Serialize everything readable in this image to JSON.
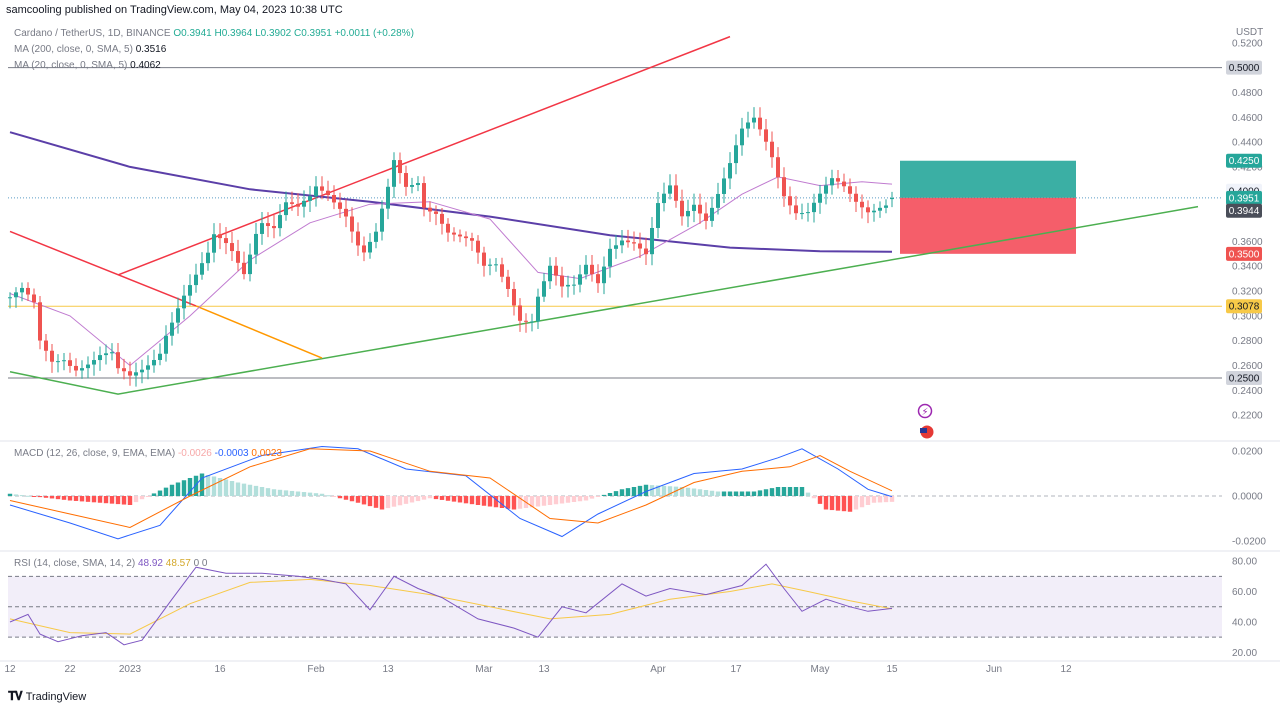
{
  "header": {
    "published": "samcooling published on TradingView.com, May 04, 2023 10:38 UTC"
  },
  "legend": {
    "symbol": "Cardano / TetherUS, 1D, BINANCE",
    "ohlc": "O0.3941  H0.3964  L0.3902  C0.3951  +0.0011 (+0.28%)",
    "ma200_label": "MA (200, close, 0, SMA, 5)",
    "ma200_value": "0.3516",
    "ma20_label": "MA (20, close, 0, SMA, 5)",
    "ma20_value": "0.4062"
  },
  "macd_legend": {
    "label": "MACD (12, 26, close, 9, EMA, EMA)",
    "hist": "-0.0026",
    "macd": "-0.0003",
    "signal": "0.0023"
  },
  "rsi_legend": {
    "label": "RSI (14, close, SMA, 14, 2)",
    "rsi": "48.92",
    "sma": "48.57",
    "extra": "0  0"
  },
  "footer": {
    "brand": "TradingView"
  },
  "colors": {
    "up": "#26a69a",
    "down": "#ef5350",
    "ma200": "#5b3fa8",
    "ma20": "#c07bd0",
    "red_line": "#f23645",
    "green_line": "#4caf50",
    "orange_line": "#ff9800",
    "yellow_line": "#f7c948",
    "macd_line": "#2962ff",
    "signal_line": "#ff6d00",
    "rsi_line": "#7e57c2",
    "rsi_ma": "#f7c948",
    "target_zone": "#26a69a",
    "stop_zone": "#f23645"
  },
  "chart_data": {
    "type": "candlestick",
    "symbol": "ADA/USDT",
    "price_axis": {
      "unit": "USDT",
      "ticks": [
        "0.5200",
        "0.4800",
        "0.4600",
        "0.4400",
        "0.4200",
        "0.3600",
        "0.3400",
        "0.3200",
        "0.3000",
        "0.2800",
        "0.2600",
        "0.2400",
        "0.2200"
      ],
      "tick_values": [
        0.52,
        0.48,
        0.46,
        0.44,
        0.42,
        0.36,
        0.34,
        0.32,
        0.3,
        0.28,
        0.26,
        0.24,
        0.22
      ],
      "range": [
        0.2,
        0.54
      ]
    },
    "price_badges": [
      {
        "label": "0.5000",
        "value": 0.5,
        "style": "gray"
      },
      {
        "label": "0.4250",
        "value": 0.425,
        "style": "green"
      },
      {
        "label": "0.4000",
        "value": 0.4,
        "style": "light"
      },
      {
        "label": "0.3951",
        "value": 0.3951,
        "style": "teal"
      },
      {
        "label": "0.3944",
        "value": 0.3944,
        "style": "dark"
      },
      {
        "label": "0.3500",
        "value": 0.35,
        "style": "red"
      },
      {
        "label": "0.3078",
        "value": 0.3078,
        "style": "yellow"
      },
      {
        "label": "0.2500",
        "value": 0.25,
        "style": "gray"
      }
    ],
    "time_axis": {
      "labels": [
        "12",
        "22",
        "2023",
        "16",
        "Feb",
        "13",
        "Mar",
        "13",
        "Apr",
        "17",
        "May",
        "15",
        "Jun",
        "12"
      ],
      "label_days": [
        0,
        10,
        20,
        35,
        51,
        63,
        79,
        89,
        108,
        121,
        135,
        147,
        164,
        176
      ]
    },
    "ohlc_days": 147,
    "close_points": [
      [
        0,
        0.315
      ],
      [
        2,
        0.318
      ],
      [
        4,
        0.305
      ],
      [
        5,
        0.275
      ],
      [
        7,
        0.262
      ],
      [
        9,
        0.268
      ],
      [
        11,
        0.262
      ],
      [
        13,
        0.265
      ],
      [
        15,
        0.268
      ],
      [
        17,
        0.266
      ],
      [
        18,
        0.252
      ],
      [
        20,
        0.247
      ],
      [
        22,
        0.256
      ],
      [
        23,
        0.262
      ],
      [
        25,
        0.275
      ],
      [
        26,
        0.29
      ],
      [
        28,
        0.31
      ],
      [
        29,
        0.318
      ],
      [
        31,
        0.33
      ],
      [
        33,
        0.345
      ],
      [
        34,
        0.36
      ],
      [
        36,
        0.356
      ],
      [
        37,
        0.352
      ],
      [
        39,
        0.338
      ],
      [
        41,
        0.372
      ],
      [
        42,
        0.38
      ],
      [
        44,
        0.372
      ],
      [
        46,
        0.388
      ],
      [
        48,
        0.382
      ],
      [
        50,
        0.392
      ],
      [
        51,
        0.402
      ],
      [
        53,
        0.4
      ],
      [
        55,
        0.392
      ],
      [
        56,
        0.386
      ],
      [
        58,
        0.36
      ],
      [
        59,
        0.352
      ],
      [
        61,
        0.364
      ],
      [
        63,
        0.398
      ],
      [
        64,
        0.42
      ],
      [
        66,
        0.402
      ],
      [
        68,
        0.41
      ],
      [
        69,
        0.392
      ],
      [
        71,
        0.388
      ],
      [
        73,
        0.37
      ],
      [
        75,
        0.362
      ],
      [
        77,
        0.355
      ],
      [
        79,
        0.335
      ],
      [
        81,
        0.34
      ],
      [
        83,
        0.325
      ],
      [
        85,
        0.302
      ],
      [
        87,
        0.3
      ],
      [
        88,
        0.318
      ],
      [
        90,
        0.338
      ],
      [
        92,
        0.318
      ],
      [
        94,
        0.32
      ],
      [
        96,
        0.34
      ],
      [
        98,
        0.33
      ],
      [
        100,
        0.36
      ],
      [
        102,
        0.365
      ],
      [
        104,
        0.358
      ],
      [
        106,
        0.345
      ],
      [
        108,
        0.385
      ],
      [
        110,
        0.402
      ],
      [
        112,
        0.382
      ],
      [
        114,
        0.395
      ],
      [
        116,
        0.382
      ],
      [
        118,
        0.4
      ],
      [
        120,
        0.42
      ],
      [
        122,
        0.445
      ],
      [
        124,
        0.455
      ],
      [
        126,
        0.44
      ],
      [
        127,
        0.43
      ],
      [
        129,
        0.402
      ],
      [
        131,
        0.388
      ],
      [
        133,
        0.385
      ],
      [
        135,
        0.395
      ],
      [
        137,
        0.405
      ],
      [
        139,
        0.4
      ],
      [
        141,
        0.392
      ],
      [
        143,
        0.388
      ],
      [
        145,
        0.393
      ],
      [
        147,
        0.3951
      ]
    ],
    "ma200_points": [
      [
        0,
        0.448
      ],
      [
        20,
        0.42
      ],
      [
        40,
        0.402
      ],
      [
        60,
        0.392
      ],
      [
        80,
        0.38
      ],
      [
        100,
        0.365
      ],
      [
        120,
        0.355
      ],
      [
        135,
        0.352
      ],
      [
        147,
        0.3516
      ]
    ],
    "ma20_points": [
      [
        0,
        0.318
      ],
      [
        10,
        0.3
      ],
      [
        20,
        0.26
      ],
      [
        30,
        0.3
      ],
      [
        40,
        0.345
      ],
      [
        50,
        0.375
      ],
      [
        60,
        0.39
      ],
      [
        70,
        0.392
      ],
      [
        80,
        0.378
      ],
      [
        88,
        0.335
      ],
      [
        95,
        0.33
      ],
      [
        105,
        0.348
      ],
      [
        115,
        0.375
      ],
      [
        122,
        0.398
      ],
      [
        128,
        0.412
      ],
      [
        135,
        0.405
      ],
      [
        142,
        0.408
      ],
      [
        147,
        0.4062
      ]
    ],
    "trendlines": [
      {
        "name": "channel-upper",
        "color": "red",
        "from": [
          18,
          0.333
        ],
        "to": [
          120,
          0.525
        ]
      },
      {
        "name": "descending",
        "color": "red",
        "from": [
          0,
          0.368
        ],
        "to": [
          31,
          0.308
        ]
      },
      {
        "name": "ascending-support",
        "color": "green",
        "from": [
          0,
          0.255
        ],
        "to": [
          18,
          0.237
        ],
        "to2": [
          198,
          0.388
        ]
      },
      {
        "name": "orange",
        "color": "orange",
        "from": [
          31,
          0.308
        ],
        "to": [
          52,
          0.266
        ]
      }
    ],
    "horizontal_levels": [
      {
        "label": "0.5000",
        "value": 0.5
      },
      {
        "label": "0.3078",
        "value": 0.3078
      },
      {
        "label": "0.2500",
        "value": 0.25
      }
    ],
    "position": {
      "entry": 0.3951,
      "target": 0.425,
      "stop": 0.35,
      "start_day": 147,
      "end_day": 178
    },
    "macd": {
      "axis_ticks": [
        "0.0200",
        "0.0000",
        "-0.0200"
      ],
      "tick_values": [
        0.02,
        0.0,
        -0.02
      ],
      "range": [
        -0.024,
        0.024
      ],
      "macd_points": [
        [
          0,
          -0.004
        ],
        [
          10,
          -0.012
        ],
        [
          18,
          -0.019
        ],
        [
          25,
          -0.013
        ],
        [
          32,
          0.008
        ],
        [
          42,
          0.018
        ],
        [
          52,
          0.022
        ],
        [
          58,
          0.021
        ],
        [
          66,
          0.012
        ],
        [
          76,
          0.009
        ],
        [
          85,
          -0.01
        ],
        [
          92,
          -0.018
        ],
        [
          98,
          -0.008
        ],
        [
          106,
          0.002
        ],
        [
          114,
          0.01
        ],
        [
          122,
          0.012
        ],
        [
          128,
          0.017
        ],
        [
          132,
          0.021
        ],
        [
          138,
          0.012
        ],
        [
          143,
          0.003
        ],
        [
          147,
          -0.0003
        ]
      ],
      "signal_points": [
        [
          0,
          -0.002
        ],
        [
          10,
          -0.008
        ],
        [
          20,
          -0.014
        ],
        [
          30,
          0.0
        ],
        [
          40,
          0.013
        ],
        [
          50,
          0.021
        ],
        [
          60,
          0.02
        ],
        [
          70,
          0.011
        ],
        [
          80,
          0.008
        ],
        [
          90,
          -0.01
        ],
        [
          98,
          -0.012
        ],
        [
          106,
          -0.004
        ],
        [
          114,
          0.006
        ],
        [
          122,
          0.011
        ],
        [
          130,
          0.013
        ],
        [
          135,
          0.018
        ],
        [
          140,
          0.011
        ],
        [
          147,
          0.0023
        ]
      ],
      "hist_points": [
        [
          0,
          0.001
        ],
        [
          10,
          -0.002
        ],
        [
          20,
          -0.004
        ],
        [
          27,
          0.005
        ],
        [
          32,
          0.01
        ],
        [
          38,
          0.006
        ],
        [
          44,
          0.003
        ],
        [
          52,
          0.001
        ],
        [
          58,
          -0.003
        ],
        [
          62,
          -0.006
        ],
        [
          70,
          -0.001
        ],
        [
          78,
          -0.004
        ],
        [
          84,
          -0.006
        ],
        [
          90,
          -0.004
        ],
        [
          96,
          -0.002
        ],
        [
          102,
          0.003
        ],
        [
          106,
          0.005
        ],
        [
          112,
          0.004
        ],
        [
          118,
          0.002
        ],
        [
          124,
          0.002
        ],
        [
          128,
          0.004
        ],
        [
          132,
          0.004
        ],
        [
          136,
          -0.006
        ],
        [
          140,
          -0.007
        ],
        [
          144,
          -0.003
        ],
        [
          147,
          -0.0026
        ]
      ]
    },
    "rsi": {
      "axis_ticks": [
        "80.00",
        "60.00",
        "40.00",
        "20.00"
      ],
      "tick_values": [
        80,
        60,
        40,
        20
      ],
      "range": [
        15,
        86
      ],
      "bands": [
        70,
        50,
        30
      ],
      "rsi_points": [
        [
          0,
          40
        ],
        [
          3,
          45
        ],
        [
          5,
          32
        ],
        [
          8,
          27
        ],
        [
          12,
          31
        ],
        [
          16,
          33
        ],
        [
          19,
          25
        ],
        [
          22,
          28
        ],
        [
          27,
          55
        ],
        [
          31,
          76
        ],
        [
          36,
          72
        ],
        [
          42,
          72
        ],
        [
          48,
          70
        ],
        [
          52,
          68
        ],
        [
          56,
          65
        ],
        [
          60,
          48
        ],
        [
          64,
          70
        ],
        [
          68,
          62
        ],
        [
          72,
          56
        ],
        [
          78,
          42
        ],
        [
          84,
          36
        ],
        [
          88,
          30
        ],
        [
          92,
          50
        ],
        [
          96,
          46
        ],
        [
          102,
          65
        ],
        [
          106,
          57
        ],
        [
          110,
          62
        ],
        [
          116,
          58
        ],
        [
          122,
          64
        ],
        [
          126,
          78
        ],
        [
          129,
          62
        ],
        [
          132,
          47
        ],
        [
          136,
          55
        ],
        [
          140,
          50
        ],
        [
          143,
          47
        ],
        [
          147,
          48.92
        ]
      ],
      "sma_points": [
        [
          0,
          42
        ],
        [
          10,
          33
        ],
        [
          20,
          32
        ],
        [
          30,
          52
        ],
        [
          40,
          66
        ],
        [
          50,
          68
        ],
        [
          60,
          64
        ],
        [
          70,
          58
        ],
        [
          80,
          50
        ],
        [
          90,
          42
        ],
        [
          100,
          45
        ],
        [
          110,
          55
        ],
        [
          120,
          60
        ],
        [
          127,
          65
        ],
        [
          133,
          60
        ],
        [
          140,
          54
        ],
        [
          147,
          48.57
        ]
      ]
    }
  }
}
